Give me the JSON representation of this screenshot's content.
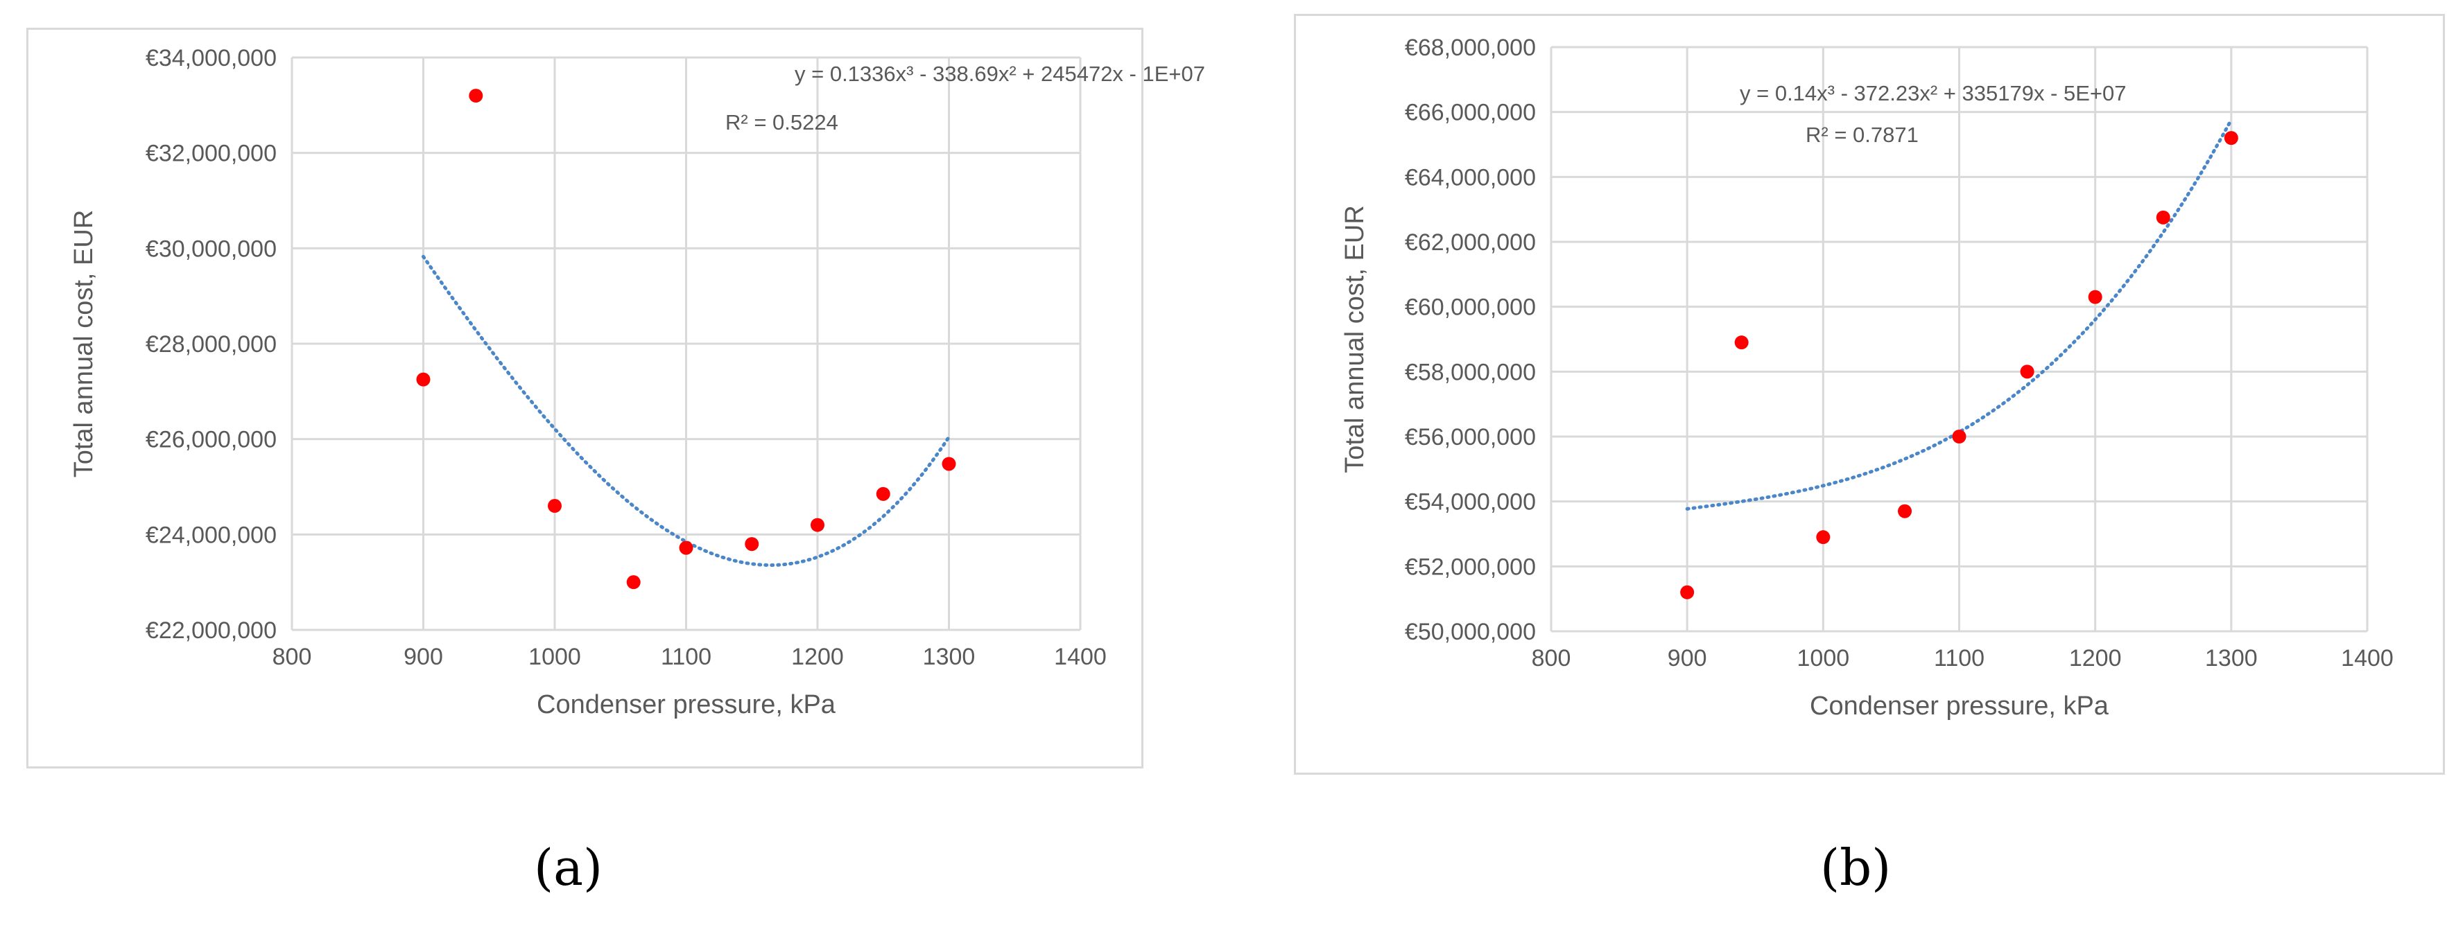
{
  "captions": [
    "(a)",
    "(b)"
  ],
  "chart_data": [
    {
      "type": "scatter",
      "title": "",
      "xlabel": "Condenser pressure, kPa",
      "ylabel": "Total annual cost, EUR",
      "xlim": [
        800,
        1400
      ],
      "ylim": [
        22000000,
        34000000
      ],
      "xticks": [
        "800",
        "900",
        "1000",
        "1100",
        "1200",
        "1300",
        "1400"
      ],
      "yticks": [
        "€22,000,000",
        "€24,000,000",
        "€26,000,000",
        "€28,000,000",
        "€30,000,000",
        "€32,000,000",
        "€34,000,000"
      ],
      "grid": true,
      "points": {
        "x": [
          900,
          940,
          1000,
          1060,
          1100,
          1150,
          1200,
          1250,
          1300
        ],
        "y": [
          27250000,
          33200000,
          24600000,
          23000000,
          23720000,
          23800000,
          24200000,
          24850000,
          25480000
        ]
      },
      "trendline": {
        "kind": "cubic",
        "x_range": [
          900,
          1300
        ],
        "coefficients_display": [
          0.1336,
          -338.69,
          245472,
          -10000000
        ],
        "equation": "y = 0.1336x³ - 338.69x² + 245472x - 1E+07",
        "r2": "R² = 0.5224"
      },
      "colors": {
        "points": "#ff0000",
        "trendline": "#4a86c8",
        "grid": "#d9d9d9",
        "text": "#595959"
      }
    },
    {
      "type": "scatter",
      "title": "",
      "xlabel": "Condenser pressure, kPa",
      "ylabel": "Total annual cost, EUR",
      "xlim": [
        800,
        1400
      ],
      "ylim": [
        50000000,
        68000000
      ],
      "xticks": [
        "800",
        "900",
        "1000",
        "1100",
        "1200",
        "1300",
        "1400"
      ],
      "yticks": [
        "€50,000,000",
        "€52,000,000",
        "€54,000,000",
        "€56,000,000",
        "€58,000,000",
        "€60,000,000",
        "€62,000,000",
        "€64,000,000",
        "€66,000,000",
        "€68,000,000"
      ],
      "grid": true,
      "points": {
        "x": [
          900,
          940,
          1000,
          1060,
          1100,
          1150,
          1200,
          1250,
          1300
        ],
        "y": [
          51200000,
          58900000,
          52900000,
          53700000,
          56000000,
          58000000,
          60300000,
          62750000,
          65200000
        ]
      },
      "trendline": {
        "kind": "cubic",
        "x_range": [
          900,
          1300
        ],
        "coefficients_display": [
          0.14,
          -372.23,
          335179,
          -50000000
        ],
        "equation": "y = 0.14x³ - 372.23x² + 335179x - 5E+07",
        "r2": "R² = 0.7871"
      },
      "colors": {
        "points": "#ff0000",
        "trendline": "#4a86c8",
        "grid": "#d9d9d9",
        "text": "#595959"
      }
    }
  ]
}
